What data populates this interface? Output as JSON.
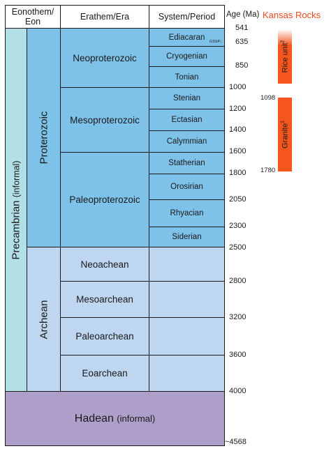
{
  "header": {
    "eon_line1": "Eonothem/",
    "eon_line2": "Eon",
    "era": "Erathem/Era",
    "period": "System/Period",
    "age": "Age (Ma)",
    "kansas": "Kansas Rocks"
  },
  "eons": {
    "precambrian": "Precambrian",
    "precambrian_note": "(informal)",
    "proterozoic": "Proterozoic",
    "archean": "Archean",
    "hadean": "Hadean",
    "hadean_note": "(informal)"
  },
  "eras": {
    "neoproterozoic": "Neoproterozoic",
    "mesoproterozoic": "Mesoproterozoic",
    "paleoproterozoic": "Paleoproterozoic",
    "neoarchean": "Neoachean",
    "mesoarchean": "Mesoarchean",
    "paleoarchean": "Paleoarchean",
    "eoarchean": "Eoarchean"
  },
  "periods": {
    "ediacaran": "Ediacaran",
    "gssp": "GSSP",
    "cryogenian": "Cryogenian",
    "tonian": "Tonian",
    "stenian": "Stenian",
    "ectasian": "Ectasian",
    "calymmian": "Calymmian",
    "statherian": "Statherian",
    "orosirian": "Orosirian",
    "rhyacian": "Rhyacian",
    "siderian": "Siderian"
  },
  "ages": [
    "541",
    "635",
    "850",
    "1000",
    "1200",
    "1400",
    "1600",
    "1800",
    "2050",
    "2300",
    "2500",
    "2800",
    "3200",
    "3600",
    "4000",
    "~4568"
  ],
  "kansas_rocks": {
    "rice_label": "Rice unit",
    "rice_sup": "2",
    "granite_label": "Granite",
    "granite_sup": "1",
    "granite_top_age": "1098",
    "granite_bottom_age": "1780",
    "bar_color": "#f4561d"
  },
  "colors": {
    "precambrian": "#b3e0e6",
    "proterozoic": "#7ec2ea",
    "archean": "#bed6f0",
    "hadean": "#ad9fca",
    "kansas_header": "#ee4b1f"
  }
}
